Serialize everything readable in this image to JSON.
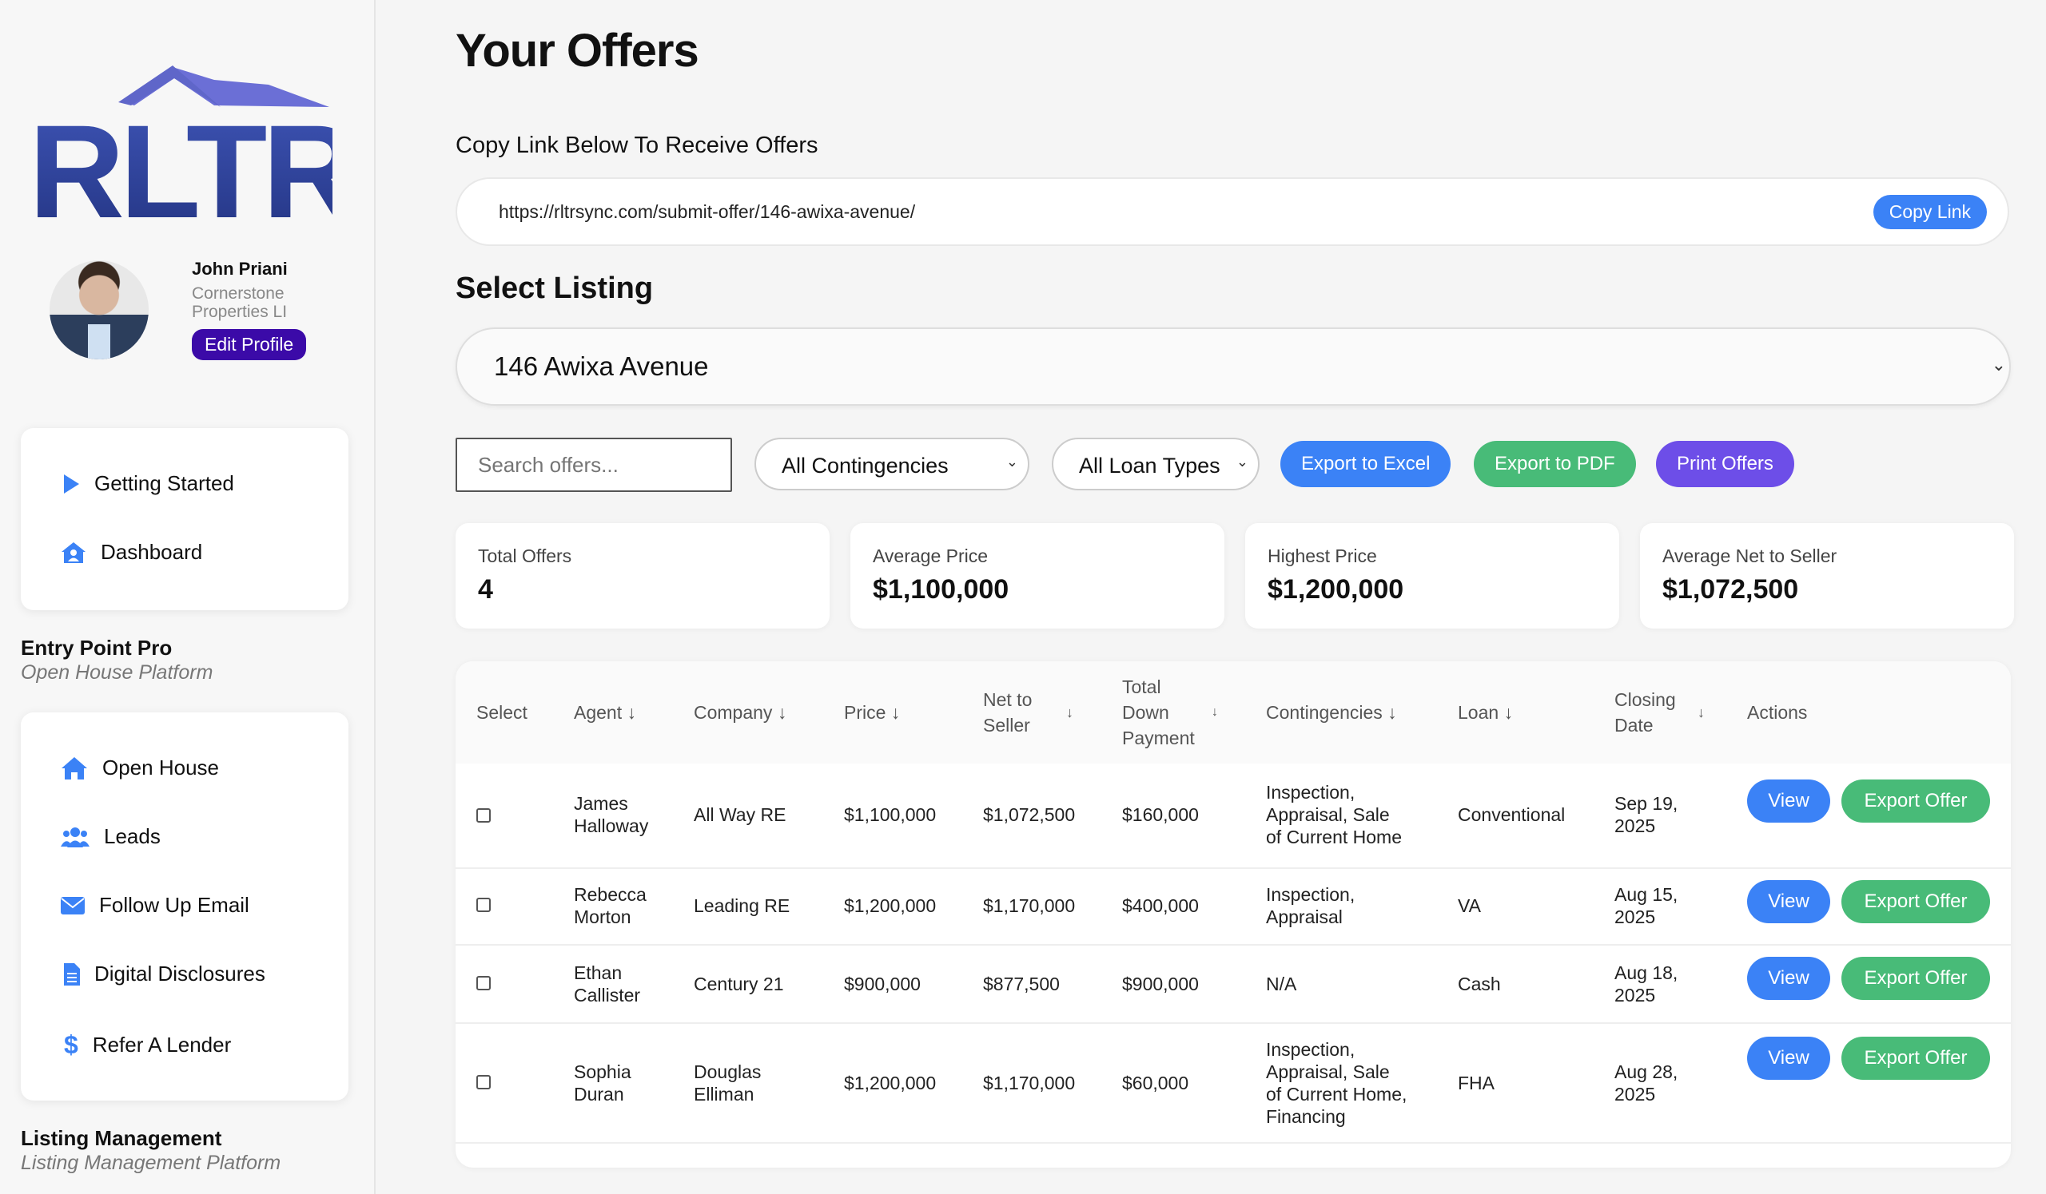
{
  "brand": {
    "logo_text": "RLTR"
  },
  "profile": {
    "name": "John Priani",
    "company": "Cornerstone Properties LI",
    "edit_label": "Edit Profile"
  },
  "nav_primary": [
    {
      "label": "Getting Started",
      "icon": "play-icon"
    },
    {
      "label": "Dashboard",
      "icon": "house-user-icon"
    }
  ],
  "section_entry": {
    "title": "Entry Point Pro",
    "subtitle": "Open House Platform"
  },
  "nav_entry": [
    {
      "label": "Open House",
      "icon": "home-icon"
    },
    {
      "label": "Leads",
      "icon": "users-icon"
    },
    {
      "label": "Follow Up Email",
      "icon": "envelope-icon"
    },
    {
      "label": "Digital Disclosures",
      "icon": "file-icon"
    },
    {
      "label": "Refer A Lender",
      "icon": "dollar-icon"
    }
  ],
  "section_listing": {
    "title": "Listing Management",
    "subtitle": "Listing Management Platform"
  },
  "page": {
    "title": "Your Offers",
    "copy_label": "Copy Link Below To Receive Offers",
    "link_url": "https://rltrsync.com/submit-offer/146-awixa-avenue/",
    "copy_button": "Copy Link",
    "select_title": "Select Listing",
    "selected_listing": "146 Awixa Avenue"
  },
  "filters": {
    "search_placeholder": "Search offers...",
    "contingencies": "All Contingencies",
    "loan_types": "All Loan Types",
    "export_excel": "Export to Excel",
    "export_pdf": "Export to PDF",
    "print": "Print Offers"
  },
  "colors": {
    "primary": "#3b82f6",
    "success": "#48bb78",
    "purple": "#6d4ee8",
    "brand_purple": "#3b0aa8",
    "logo_blue": "#2f3f95"
  },
  "stats": [
    {
      "label": "Total Offers",
      "value": "4"
    },
    {
      "label": "Average Price",
      "value": "$1,100,000"
    },
    {
      "label": "Highest Price",
      "value": "$1,200,000"
    },
    {
      "label": "Average Net to Seller",
      "value": "$1,072,500"
    }
  ],
  "table": {
    "headers": {
      "select": "Select",
      "agent": "Agent",
      "company": "Company",
      "price": "Price",
      "net_line1": "Net to",
      "net_line2": "Seller",
      "down_line1": "Total",
      "down_line2": "Down",
      "down_line3": "Payment",
      "contingencies": "Contingencies",
      "loan": "Loan",
      "closing_line1": "Closing",
      "closing_line2": "Date",
      "actions": "Actions"
    },
    "view_label": "View",
    "export_label": "Export Offer",
    "rows": [
      {
        "agent1": "James",
        "agent2": "Halloway",
        "company1": "All Way RE",
        "company2": "",
        "price": "$1,100,000",
        "net": "$1,072,500",
        "down": "$160,000",
        "cont1": "Inspection,",
        "cont2": "Appraisal, Sale",
        "cont3": "of Current Home",
        "cont4": "",
        "loan": "Conventional",
        "date1": "Sep 19,",
        "date2": "2025"
      },
      {
        "agent1": "Rebecca",
        "agent2": "Morton",
        "company1": "Leading RE",
        "company2": "",
        "price": "$1,200,000",
        "net": "$1,170,000",
        "down": "$400,000",
        "cont1": "Inspection,",
        "cont2": "Appraisal",
        "cont3": "",
        "cont4": "",
        "loan": "VA",
        "date1": "Aug 15,",
        "date2": "2025"
      },
      {
        "agent1": "Ethan",
        "agent2": "Callister",
        "company1": "Century 21",
        "company2": "",
        "price": "$900,000",
        "net": "$877,500",
        "down": "$900,000",
        "cont1": "N/A",
        "cont2": "",
        "cont3": "",
        "cont4": "",
        "loan": "Cash",
        "date1": "Aug 18,",
        "date2": "2025"
      },
      {
        "agent1": "Sophia",
        "agent2": "Duran",
        "company1": "Douglas",
        "company2": "Elliman",
        "price": "$1,200,000",
        "net": "$1,170,000",
        "down": "$60,000",
        "cont1": "Inspection,",
        "cont2": "Appraisal, Sale",
        "cont3": "of Current Home,",
        "cont4": "Financing",
        "loan": "FHA",
        "date1": "Aug 28,",
        "date2": "2025"
      }
    ]
  }
}
